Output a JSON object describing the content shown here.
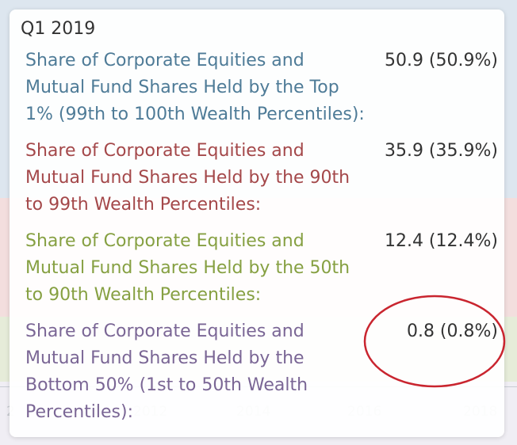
{
  "tooltip": {
    "title": "Q1 2019",
    "rows": [
      {
        "label": "Share of Corporate Equities and Mutual Fund Shares Held by the Top 1% (99th to 100th Wealth Percentiles):",
        "value": "50.9 (50.9%)",
        "color": "#4e7b97"
      },
      {
        "label": "Share of Corporate Equities and Mutual Fund Shares Held by the 90th to 99th Wealth Percentiles:",
        "value": "35.9 (35.9%)",
        "color": "#a4484a"
      },
      {
        "label": "Share of Corporate Equities and Mutual Fund Shares Held by the 50th to 90th Wealth Percentiles:",
        "value": "12.4 (12.4%)",
        "color": "#86a042"
      },
      {
        "label": "Share of Corporate Equities and Mutual Fund Shares Held by the Bottom 50% (1st to 50th Wealth Percentiles):",
        "value": "0.8 (0.8%)",
        "color": "#7a6695"
      }
    ]
  },
  "background_axis": {
    "ticks": [
      "2",
      "2012",
      "2014",
      "2016",
      "2018"
    ]
  },
  "annotation": {
    "color": "#c9252f"
  }
}
